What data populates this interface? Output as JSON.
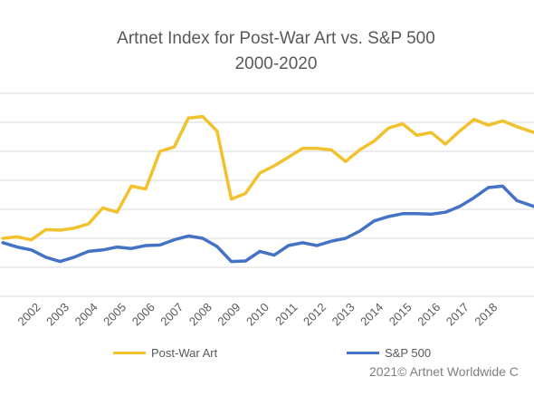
{
  "chart_data": {
    "type": "line",
    "title": "Artnet Index for Post-War Art vs. S&P 500",
    "subtitle": "2000-2020",
    "x_tick_labels": [
      "2002",
      "2003",
      "2004",
      "2005",
      "2006",
      "2007",
      "2008",
      "2009",
      "2010",
      "2011",
      "2012",
      "2013",
      "2014",
      "2015",
      "2016",
      "2017",
      "2018"
    ],
    "x_tick_values": [
      2002,
      2003,
      2004,
      2005,
      2006,
      2007,
      2008,
      2009,
      2010,
      2011,
      2012,
      2013,
      2014,
      2015,
      2016,
      2017,
      2018
    ],
    "xlim": [
      2000.9,
      2019.6
    ],
    "ylim": [
      0,
      7
    ],
    "grid": true,
    "series": [
      {
        "name": "Post-War Art",
        "color": "#f2c12e",
        "x": [
          2001,
          2001.5,
          2002,
          2002.5,
          2003,
          2003.5,
          2004,
          2004.5,
          2005,
          2005.5,
          2006,
          2006.5,
          2007,
          2007.5,
          2008,
          2008.5,
          2009,
          2009.5,
          2010,
          2010.5,
          2011,
          2011.5,
          2012,
          2012.5,
          2013,
          2013.5,
          2014,
          2014.5,
          2015,
          2015.5,
          2016,
          2016.5,
          2017,
          2017.5,
          2018,
          2018.5,
          2019,
          2019.6
        ],
        "values": [
          2.0,
          2.05,
          1.95,
          2.3,
          2.28,
          2.35,
          2.5,
          3.05,
          2.9,
          3.8,
          3.7,
          5.0,
          5.15,
          6.15,
          6.2,
          5.7,
          3.35,
          3.55,
          4.25,
          4.5,
          4.8,
          5.1,
          5.1,
          5.05,
          4.65,
          5.05,
          5.35,
          5.8,
          5.95,
          5.55,
          5.65,
          5.25,
          5.7,
          6.1,
          5.9,
          6.05,
          5.85,
          5.65
        ]
      },
      {
        "name": "S&P 500",
        "color": "#4472c4",
        "x": [
          2001,
          2001.5,
          2002,
          2002.5,
          2003,
          2003.5,
          2004,
          2004.5,
          2005,
          2005.5,
          2006,
          2006.5,
          2007,
          2007.5,
          2008,
          2008.5,
          2009,
          2009.5,
          2010,
          2010.5,
          2011,
          2011.5,
          2012,
          2012.5,
          2013,
          2013.5,
          2014,
          2014.5,
          2015,
          2015.5,
          2016,
          2016.5,
          2017,
          2017.5,
          2018,
          2018.5,
          2019,
          2019.6
        ],
        "values": [
          1.85,
          1.7,
          1.6,
          1.35,
          1.2,
          1.35,
          1.55,
          1.6,
          1.7,
          1.65,
          1.75,
          1.77,
          1.95,
          2.08,
          2.0,
          1.72,
          1.2,
          1.22,
          1.55,
          1.42,
          1.75,
          1.85,
          1.75,
          1.9,
          2.0,
          2.25,
          2.6,
          2.75,
          2.85,
          2.85,
          2.83,
          2.9,
          3.1,
          3.4,
          3.75,
          3.8,
          3.3,
          3.1
        ]
      }
    ],
    "legend_position": "bottom"
  },
  "credit": "2021© Artnet Worldwide C"
}
